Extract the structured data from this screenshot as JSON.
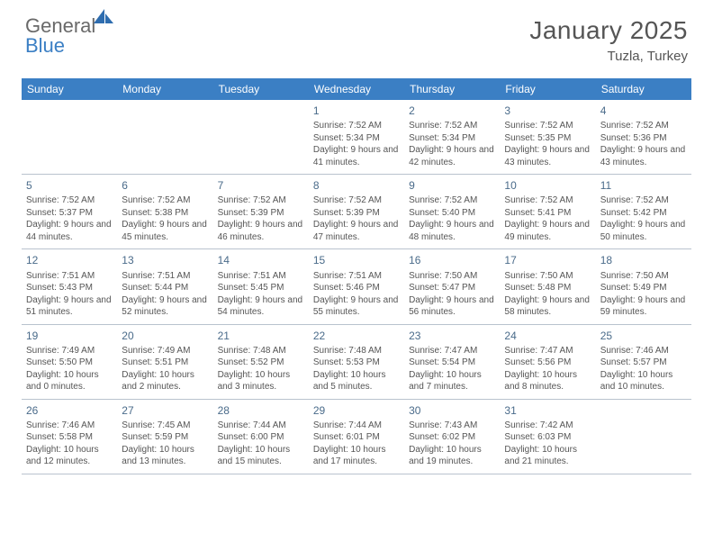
{
  "brand": {
    "word1": "General",
    "word2": "Blue"
  },
  "title": "January 2025",
  "location": "Tuzla, Turkey",
  "header_bg": "#3b7fc4",
  "dayNames": [
    "Sunday",
    "Monday",
    "Tuesday",
    "Wednesday",
    "Thursday",
    "Friday",
    "Saturday"
  ],
  "firstWeekday": 3,
  "days": [
    {
      "n": 1,
      "sr": "7:52 AM",
      "ss": "5:34 PM",
      "dh": 9,
      "dm": 41
    },
    {
      "n": 2,
      "sr": "7:52 AM",
      "ss": "5:34 PM",
      "dh": 9,
      "dm": 42
    },
    {
      "n": 3,
      "sr": "7:52 AM",
      "ss": "5:35 PM",
      "dh": 9,
      "dm": 43
    },
    {
      "n": 4,
      "sr": "7:52 AM",
      "ss": "5:36 PM",
      "dh": 9,
      "dm": 43
    },
    {
      "n": 5,
      "sr": "7:52 AM",
      "ss": "5:37 PM",
      "dh": 9,
      "dm": 44
    },
    {
      "n": 6,
      "sr": "7:52 AM",
      "ss": "5:38 PM",
      "dh": 9,
      "dm": 45
    },
    {
      "n": 7,
      "sr": "7:52 AM",
      "ss": "5:39 PM",
      "dh": 9,
      "dm": 46
    },
    {
      "n": 8,
      "sr": "7:52 AM",
      "ss": "5:39 PM",
      "dh": 9,
      "dm": 47
    },
    {
      "n": 9,
      "sr": "7:52 AM",
      "ss": "5:40 PM",
      "dh": 9,
      "dm": 48
    },
    {
      "n": 10,
      "sr": "7:52 AM",
      "ss": "5:41 PM",
      "dh": 9,
      "dm": 49
    },
    {
      "n": 11,
      "sr": "7:52 AM",
      "ss": "5:42 PM",
      "dh": 9,
      "dm": 50
    },
    {
      "n": 12,
      "sr": "7:51 AM",
      "ss": "5:43 PM",
      "dh": 9,
      "dm": 51
    },
    {
      "n": 13,
      "sr": "7:51 AM",
      "ss": "5:44 PM",
      "dh": 9,
      "dm": 52
    },
    {
      "n": 14,
      "sr": "7:51 AM",
      "ss": "5:45 PM",
      "dh": 9,
      "dm": 54
    },
    {
      "n": 15,
      "sr": "7:51 AM",
      "ss": "5:46 PM",
      "dh": 9,
      "dm": 55
    },
    {
      "n": 16,
      "sr": "7:50 AM",
      "ss": "5:47 PM",
      "dh": 9,
      "dm": 56
    },
    {
      "n": 17,
      "sr": "7:50 AM",
      "ss": "5:48 PM",
      "dh": 9,
      "dm": 58
    },
    {
      "n": 18,
      "sr": "7:50 AM",
      "ss": "5:49 PM",
      "dh": 9,
      "dm": 59
    },
    {
      "n": 19,
      "sr": "7:49 AM",
      "ss": "5:50 PM",
      "dh": 10,
      "dm": 0
    },
    {
      "n": 20,
      "sr": "7:49 AM",
      "ss": "5:51 PM",
      "dh": 10,
      "dm": 2
    },
    {
      "n": 21,
      "sr": "7:48 AM",
      "ss": "5:52 PM",
      "dh": 10,
      "dm": 3
    },
    {
      "n": 22,
      "sr": "7:48 AM",
      "ss": "5:53 PM",
      "dh": 10,
      "dm": 5
    },
    {
      "n": 23,
      "sr": "7:47 AM",
      "ss": "5:54 PM",
      "dh": 10,
      "dm": 7
    },
    {
      "n": 24,
      "sr": "7:47 AM",
      "ss": "5:56 PM",
      "dh": 10,
      "dm": 8
    },
    {
      "n": 25,
      "sr": "7:46 AM",
      "ss": "5:57 PM",
      "dh": 10,
      "dm": 10
    },
    {
      "n": 26,
      "sr": "7:46 AM",
      "ss": "5:58 PM",
      "dh": 10,
      "dm": 12
    },
    {
      "n": 27,
      "sr": "7:45 AM",
      "ss": "5:59 PM",
      "dh": 10,
      "dm": 13
    },
    {
      "n": 28,
      "sr": "7:44 AM",
      "ss": "6:00 PM",
      "dh": 10,
      "dm": 15
    },
    {
      "n": 29,
      "sr": "7:44 AM",
      "ss": "6:01 PM",
      "dh": 10,
      "dm": 17
    },
    {
      "n": 30,
      "sr": "7:43 AM",
      "ss": "6:02 PM",
      "dh": 10,
      "dm": 19
    },
    {
      "n": 31,
      "sr": "7:42 AM",
      "ss": "6:03 PM",
      "dh": 10,
      "dm": 21
    }
  ]
}
